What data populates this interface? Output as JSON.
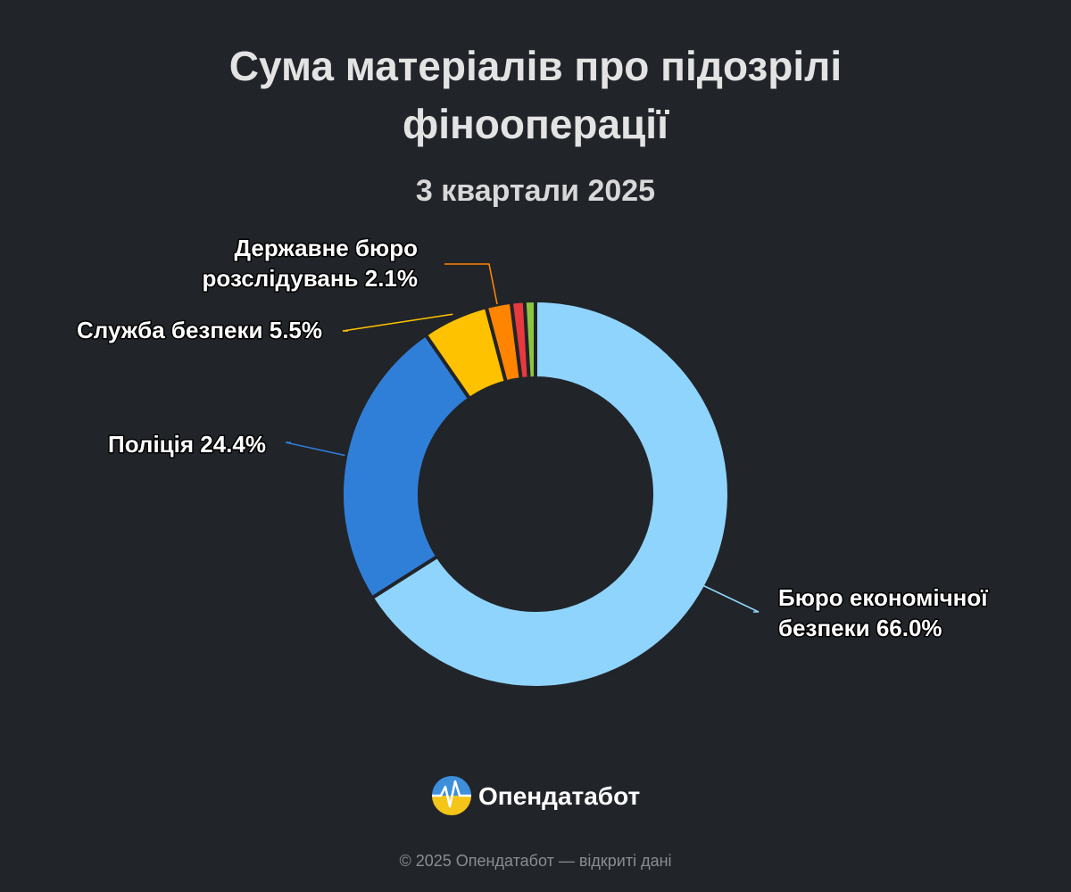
{
  "chart_data": {
    "type": "pie",
    "title_lines": [
      "Сума матеріалів про підозрілі",
      "фінооперації"
    ],
    "subtitle": "3 квартали 2025",
    "series": [
      {
        "name": "",
        "points": [
          {
            "name": "Бюро економічної безпеки",
            "value": 66.0,
            "color": "#8fd4fc",
            "label_lines": [
              "Бюро економічної",
              "безпеки 66.0%"
            ]
          },
          {
            "name": "Поліція",
            "value": 24.4,
            "color": "#2f7fd8",
            "label_lines": [
              "Поліція 24.4%"
            ]
          },
          {
            "name": "Служба безпеки",
            "value": 5.5,
            "color": "#ffc200",
            "label_lines": [
              "Служба безпеки 5.5%"
            ]
          },
          {
            "name": "Державне бюро розслідувань",
            "value": 2.1,
            "color": "#ff8400",
            "label_lines": [
              "Державне бюро",
              "розслідувань 2.1%"
            ]
          },
          {
            "name": "",
            "value": 1.1,
            "color": "#e8393e",
            "label_lines": []
          },
          {
            "name": "",
            "value": 0.9,
            "color": "#8cc63f",
            "label_lines": []
          }
        ]
      }
    ],
    "start_angle_deg": 0,
    "direction": "clockwise",
    "legend": "none"
  },
  "brand": {
    "name": "Опендатабот",
    "logo_icon": "opendatabot-logo-icon",
    "logo_colors": [
      "#3d8fdc",
      "#f5c518"
    ]
  },
  "credit": "© 2025 Опендатабот — відкриті дані"
}
